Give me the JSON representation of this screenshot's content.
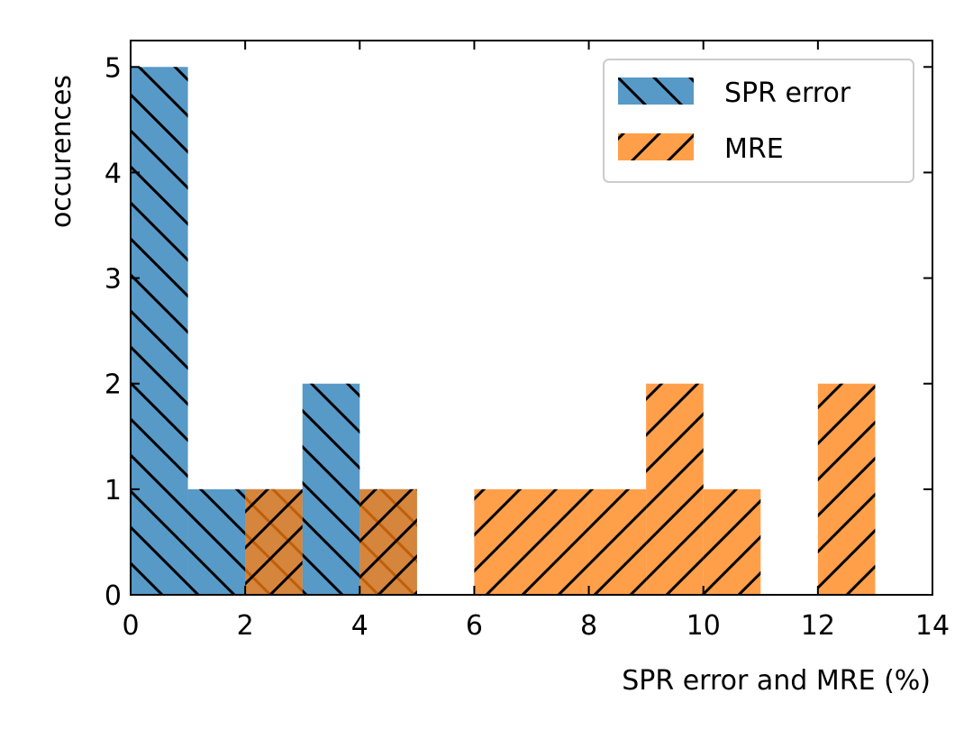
{
  "chart_data": {
    "type": "bar",
    "xlabel": "SPR error and MRE (%)",
    "ylabel": "occurences",
    "xlim": [
      0,
      14
    ],
    "ylim": [
      0,
      5.25
    ],
    "xticks": [
      0,
      2,
      4,
      6,
      8,
      10,
      12,
      14
    ],
    "yticks": [
      0,
      1,
      2,
      3,
      4,
      5
    ],
    "grid": false,
    "legend_position": "top-right",
    "bin_width": 1,
    "bin_starts": [
      0,
      1,
      2,
      3,
      4,
      5,
      6,
      7,
      8,
      9,
      10,
      11,
      12,
      13
    ],
    "series": [
      {
        "name": "SPR error",
        "color": "#1f77b4",
        "hatch": "backslash",
        "values": [
          5,
          1,
          1,
          2,
          1,
          0,
          0,
          0,
          0,
          0,
          0,
          0,
          0,
          0
        ]
      },
      {
        "name": "MRE",
        "color": "#ff7f0e",
        "hatch": "slash",
        "values": [
          0,
          0,
          1,
          0,
          1,
          0,
          1,
          1,
          1,
          2,
          1,
          0,
          2,
          0
        ]
      }
    ]
  }
}
